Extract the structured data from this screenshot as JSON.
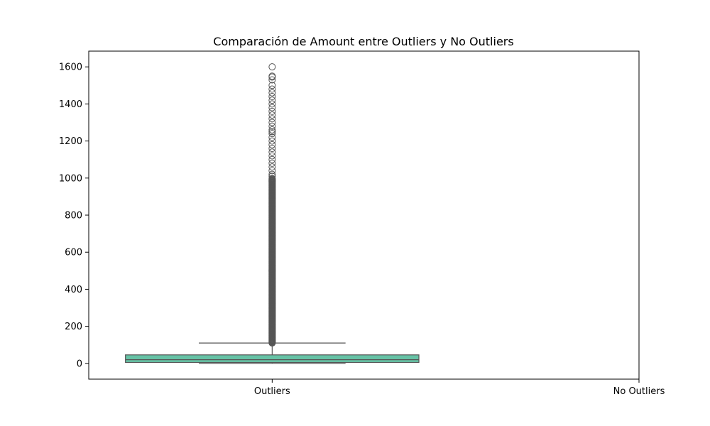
{
  "chart_data": {
    "type": "box",
    "title": "Comparación de Amount entre Outliers y No Outliers",
    "xlabel": "",
    "ylabel": "",
    "categories": [
      "Outliers",
      "No Outliers"
    ],
    "ylim": [
      -85,
      1685
    ],
    "y_ticks": [
      0,
      200,
      400,
      600,
      800,
      1000,
      1200,
      1400,
      1600
    ],
    "grid": false,
    "box_color": "#66c2a5",
    "line_color": "#555555",
    "boxes": [
      {
        "category": "Outliers",
        "whisker_low": 0,
        "q1": 5,
        "median": 20,
        "q3": 46,
        "whisker_high": 110,
        "fliers": [
          110,
          120,
          135,
          150,
          165,
          180,
          200,
          220,
          240,
          260,
          280,
          300,
          320,
          340,
          360,
          380,
          400,
          420,
          440,
          460,
          480,
          500,
          520,
          540,
          560,
          580,
          600,
          620,
          640,
          660,
          680,
          700,
          720,
          740,
          760,
          780,
          800,
          820,
          840,
          860,
          880,
          900,
          920,
          940,
          960,
          980,
          1000,
          1010,
          1020,
          1040,
          1060,
          1080,
          1100,
          1120,
          1140,
          1160,
          1180,
          1200,
          1220,
          1240,
          1250,
          1260,
          1280,
          1300,
          1320,
          1340,
          1360,
          1380,
          1400,
          1420,
          1440,
          1460,
          1480,
          1500,
          1530,
          1545,
          1550,
          1600
        ]
      },
      {
        "category": "No Outliers"
      }
    ]
  }
}
